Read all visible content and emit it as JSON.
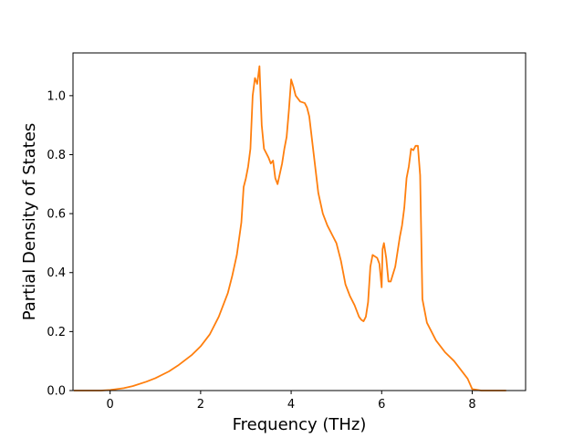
{
  "chart_data": {
    "type": "line",
    "title": "",
    "xlabel": "Frequency (THz)",
    "ylabel": "Partial Density of States",
    "xlim": [
      -0.82,
      9.18
    ],
    "ylim": [
      0,
      1.145
    ],
    "xticks": [
      0,
      2,
      4,
      6,
      8
    ],
    "xtick_labels": [
      "0",
      "2",
      "4",
      "6",
      "8"
    ],
    "yticks": [
      0,
      0.2,
      0.4,
      0.6,
      0.8,
      1.0
    ],
    "ytick_labels": [
      "0.0",
      "0.2",
      "0.4",
      "0.6",
      "0.8",
      "1.0"
    ],
    "grid": false,
    "legend": "none",
    "series": [
      {
        "color": "#ff7f0e",
        "x": [
          -0.8,
          -0.2,
          0,
          0.3,
          0.5,
          0.8,
          1.0,
          1.3,
          1.5,
          1.8,
          2.0,
          2.2,
          2.4,
          2.6,
          2.7,
          2.8,
          2.9,
          2.95,
          3.0,
          3.05,
          3.1,
          3.15,
          3.2,
          3.25,
          3.3,
          3.35,
          3.4,
          3.5,
          3.55,
          3.6,
          3.65,
          3.7,
          3.8,
          3.85,
          3.9,
          3.95,
          4.0,
          4.05,
          4.1,
          4.2,
          4.3,
          4.35,
          4.4,
          4.5,
          4.6,
          4.7,
          4.8,
          4.9,
          5.0,
          5.1,
          5.2,
          5.3,
          5.4,
          5.5,
          5.55,
          5.6,
          5.65,
          5.7,
          5.75,
          5.8,
          5.9,
          5.95,
          6.0,
          6.02,
          6.05,
          6.1,
          6.15,
          6.2,
          6.3,
          6.4,
          6.45,
          6.5,
          6.55,
          6.6,
          6.65,
          6.7,
          6.75,
          6.8,
          6.85,
          6.9,
          7.0,
          7.2,
          7.4,
          7.6,
          7.8,
          7.9,
          8.0,
          8.2,
          8.5,
          8.75
        ],
        "values": [
          0,
          0,
          0.002,
          0.008,
          0.015,
          0.03,
          0.042,
          0.065,
          0.085,
          0.12,
          0.15,
          0.19,
          0.25,
          0.33,
          0.39,
          0.46,
          0.57,
          0.69,
          0.72,
          0.76,
          0.82,
          1.0,
          1.06,
          1.04,
          1.1,
          0.9,
          0.82,
          0.79,
          0.77,
          0.78,
          0.72,
          0.7,
          0.77,
          0.82,
          0.86,
          0.95,
          1.055,
          1.03,
          1.0,
          0.98,
          0.975,
          0.96,
          0.93,
          0.8,
          0.67,
          0.6,
          0.56,
          0.53,
          0.5,
          0.44,
          0.36,
          0.32,
          0.29,
          0.25,
          0.24,
          0.235,
          0.25,
          0.3,
          0.42,
          0.46,
          0.45,
          0.43,
          0.35,
          0.48,
          0.5,
          0.45,
          0.37,
          0.37,
          0.42,
          0.52,
          0.56,
          0.62,
          0.72,
          0.76,
          0.82,
          0.815,
          0.83,
          0.83,
          0.73,
          0.31,
          0.23,
          0.17,
          0.13,
          0.1,
          0.06,
          0.04,
          0.005,
          0,
          0,
          0
        ]
      }
    ]
  }
}
